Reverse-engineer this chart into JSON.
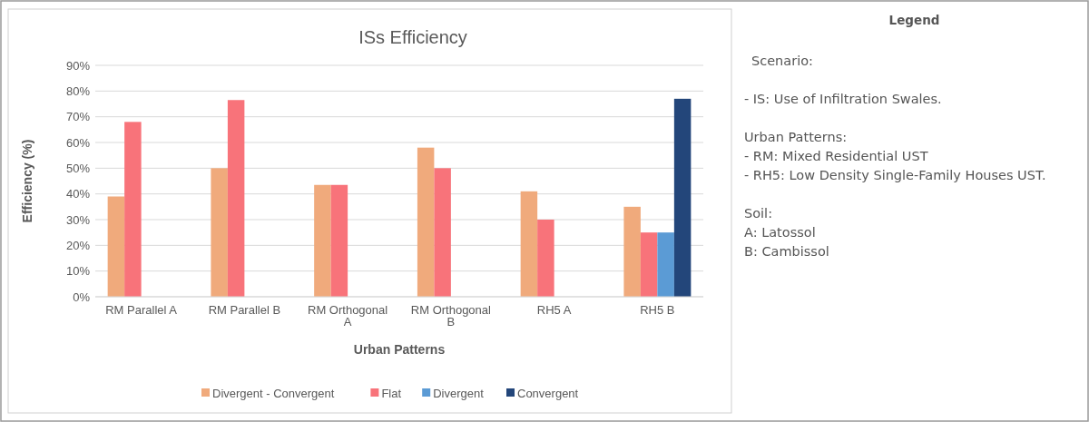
{
  "chart_data": {
    "type": "bar",
    "title": "ISs Efficiency",
    "xlabel": "Urban Patterns",
    "ylabel": "Efficiency (%)",
    "categories": [
      "RM Parallel A",
      "RM Parallel B",
      "RM Orthogonal A",
      "RM Orthogonal B",
      "RH5 A",
      "RH5 B"
    ],
    "series": [
      {
        "name": "Divergent - Convergent",
        "color": "#f0aa7c",
        "values": [
          39,
          50,
          43.5,
          58,
          41,
          35
        ]
      },
      {
        "name": "Flat",
        "color": "#f8737a",
        "values": [
          68,
          76.5,
          43.5,
          50,
          30,
          25
        ]
      },
      {
        "name": "Divergent",
        "color": "#5b9bd5",
        "values": [
          null,
          null,
          null,
          null,
          null,
          25
        ]
      },
      {
        "name": "Convergent",
        "color": "#23467a",
        "values": [
          null,
          null,
          null,
          null,
          null,
          77
        ]
      }
    ],
    "ylim": [
      0,
      90
    ],
    "yticks": [
      {
        "value": 0,
        "label": "0%"
      },
      {
        "value": 10,
        "label": "10%"
      },
      {
        "value": 20,
        "label": "20%"
      },
      {
        "value": 30,
        "label": "30%"
      },
      {
        "value": 40,
        "label": "40%"
      },
      {
        "value": 50,
        "label": "50%"
      },
      {
        "value": 60,
        "label": "60%"
      },
      {
        "value": 70,
        "label": "70%"
      },
      {
        "value": 80,
        "label": "80%"
      },
      {
        "value": 90,
        "label": "90%"
      }
    ],
    "grid": "y",
    "legend": "bottom",
    "annotations": [
      "Legend",
      "Scenario:",
      "- IS: Use of Infiltration Swales.",
      "Urban Patterns:",
      "- RM: Mixed Residential UST",
      "- RH5: Low Density Single-Family Houses UST.",
      "Soil:",
      "A: Latossol",
      "B: Cambissol"
    ]
  }
}
